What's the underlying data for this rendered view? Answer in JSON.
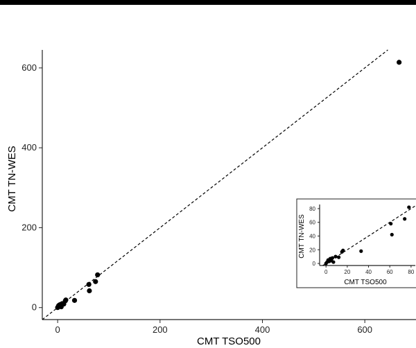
{
  "chart_data": [
    {
      "type": "scatter",
      "title": "",
      "xlabel": "CMT TSO500",
      "ylabel": "CMT TN-WES",
      "xlim": [
        -30,
        700
      ],
      "ylim": [
        -30,
        645
      ],
      "xticks": [
        "0",
        "200",
        "400",
        "600"
      ],
      "yticks": [
        "0",
        "200",
        "400",
        "600"
      ],
      "xtick_values": [
        0,
        200,
        400,
        600
      ],
      "ytick_values": [
        0,
        200,
        400,
        600
      ],
      "reference_line": "y = x (dashed)",
      "grid": false,
      "points": [
        {
          "x": 0,
          "y": 0
        },
        {
          "x": 1,
          "y": 2
        },
        {
          "x": 2,
          "y": 5
        },
        {
          "x": 3,
          "y": 3
        },
        {
          "x": 4,
          "y": 7
        },
        {
          "x": 5,
          "y": 4
        },
        {
          "x": 6,
          "y": 8
        },
        {
          "x": 7,
          "y": 2
        },
        {
          "x": 9,
          "y": 10
        },
        {
          "x": 12,
          "y": 9
        },
        {
          "x": 15,
          "y": 17
        },
        {
          "x": 16,
          "y": 19
        },
        {
          "x": 33,
          "y": 18
        },
        {
          "x": 61,
          "y": 58
        },
        {
          "x": 62,
          "y": 42
        },
        {
          "x": 74,
          "y": 65
        },
        {
          "x": 78,
          "y": 82
        },
        {
          "x": 667,
          "y": 614
        }
      ]
    },
    {
      "type": "scatter",
      "title": "",
      "xlabel": "CMT TSO500",
      "ylabel": "CMT TN-WES",
      "xlim": [
        -6,
        84
      ],
      "ylim": [
        -3,
        86
      ],
      "xticks": [
        "0",
        "20",
        "40",
        "60",
        "80"
      ],
      "yticks": [
        "0",
        "20",
        "40",
        "60",
        "80"
      ],
      "xtick_values": [
        0,
        20,
        40,
        60,
        80
      ],
      "ytick_values": [
        0,
        20,
        40,
        60,
        80
      ],
      "reference_line": "y = x (dashed)",
      "grid": false,
      "points": [
        {
          "x": 0,
          "y": 0
        },
        {
          "x": 1,
          "y": 2
        },
        {
          "x": 2,
          "y": 5
        },
        {
          "x": 3,
          "y": 3
        },
        {
          "x": 4,
          "y": 7
        },
        {
          "x": 5,
          "y": 4
        },
        {
          "x": 6,
          "y": 8
        },
        {
          "x": 7,
          "y": 2
        },
        {
          "x": 9,
          "y": 10
        },
        {
          "x": 12,
          "y": 9
        },
        {
          "x": 15,
          "y": 17
        },
        {
          "x": 16,
          "y": 19
        },
        {
          "x": 33,
          "y": 18
        },
        {
          "x": 61,
          "y": 58
        },
        {
          "x": 62,
          "y": 42
        },
        {
          "x": 74,
          "y": 65
        },
        {
          "x": 78,
          "y": 82
        }
      ]
    }
  ]
}
